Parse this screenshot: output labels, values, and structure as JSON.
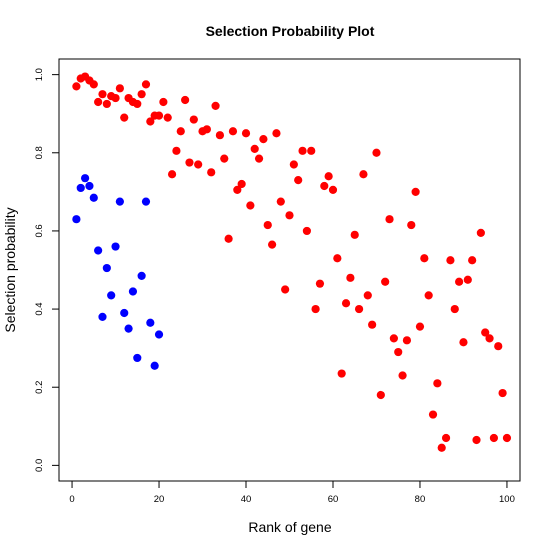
{
  "chart_data": {
    "type": "scatter",
    "title": "Selection Probability Plot",
    "xlabel": "Rank of gene",
    "ylabel": "Selection probability",
    "xlim": [
      -3,
      103
    ],
    "ylim": [
      -0.04,
      1.04
    ],
    "xticks": [
      0,
      20,
      40,
      60,
      80,
      100
    ],
    "yticks": [
      0.0,
      0.2,
      0.4,
      0.6,
      0.8,
      1.0
    ],
    "ytick_labels": [
      "0.0",
      "0.2",
      "0.4",
      "0.6",
      "0.8",
      "1.0"
    ],
    "grid": false,
    "colors": {
      "series_1": "#ff0000",
      "series_2": "#0000ff",
      "axis": "#000000"
    },
    "series": [
      {
        "color": "#ff0000",
        "points": [
          [
            1,
            0.97
          ],
          [
            2,
            0.99
          ],
          [
            3,
            0.995
          ],
          [
            4,
            0.985
          ],
          [
            5,
            0.975
          ],
          [
            6,
            0.93
          ],
          [
            7,
            0.95
          ],
          [
            8,
            0.925
          ],
          [
            9,
            0.945
          ],
          [
            10,
            0.94
          ],
          [
            11,
            0.965
          ],
          [
            12,
            0.89
          ],
          [
            13,
            0.94
          ],
          [
            14,
            0.93
          ],
          [
            15,
            0.925
          ],
          [
            16,
            0.95
          ],
          [
            17,
            0.975
          ],
          [
            18,
            0.88
          ],
          [
            19,
            0.895
          ],
          [
            20,
            0.895
          ],
          [
            21,
            0.93
          ],
          [
            22,
            0.89
          ],
          [
            23,
            0.745
          ],
          [
            24,
            0.805
          ],
          [
            25,
            0.855
          ],
          [
            26,
            0.935
          ],
          [
            27,
            0.775
          ],
          [
            28,
            0.885
          ],
          [
            29,
            0.77
          ],
          [
            30,
            0.855
          ],
          [
            31,
            0.86
          ],
          [
            32,
            0.75
          ],
          [
            33,
            0.92
          ],
          [
            34,
            0.845
          ],
          [
            35,
            0.785
          ],
          [
            36,
            0.58
          ],
          [
            37,
            0.855
          ],
          [
            38,
            0.705
          ],
          [
            39,
            0.72
          ],
          [
            40,
            0.85
          ],
          [
            41,
            0.665
          ],
          [
            42,
            0.81
          ],
          [
            43,
            0.785
          ],
          [
            44,
            0.835
          ],
          [
            45,
            0.615
          ],
          [
            46,
            0.565
          ],
          [
            47,
            0.85
          ],
          [
            48,
            0.675
          ],
          [
            49,
            0.45
          ],
          [
            50,
            0.64
          ],
          [
            51,
            0.77
          ],
          [
            52,
            0.73
          ],
          [
            53,
            0.805
          ],
          [
            54,
            0.6
          ],
          [
            55,
            0.805
          ],
          [
            56,
            0.4
          ],
          [
            57,
            0.465
          ],
          [
            58,
            0.715
          ],
          [
            59,
            0.74
          ],
          [
            60,
            0.705
          ],
          [
            61,
            0.53
          ],
          [
            62,
            0.235
          ],
          [
            63,
            0.415
          ],
          [
            64,
            0.48
          ],
          [
            65,
            0.59
          ],
          [
            66,
            0.4
          ],
          [
            67,
            0.745
          ],
          [
            68,
            0.435
          ],
          [
            69,
            0.36
          ],
          [
            70,
            0.8
          ],
          [
            71,
            0.18
          ],
          [
            72,
            0.47
          ],
          [
            73,
            0.63
          ],
          [
            74,
            0.325
          ],
          [
            75,
            0.29
          ],
          [
            76,
            0.23
          ],
          [
            77,
            0.32
          ],
          [
            78,
            0.615
          ],
          [
            79,
            0.7
          ],
          [
            80,
            0.355
          ],
          [
            81,
            0.53
          ],
          [
            82,
            0.435
          ],
          [
            83,
            0.13
          ],
          [
            84,
            0.21
          ],
          [
            85,
            0.045
          ],
          [
            86,
            0.07
          ],
          [
            87,
            0.525
          ],
          [
            88,
            0.4
          ],
          [
            89,
            0.47
          ],
          [
            90,
            0.315
          ],
          [
            91,
            0.475
          ],
          [
            92,
            0.525
          ],
          [
            93,
            0.065
          ],
          [
            94,
            0.595
          ],
          [
            95,
            0.34
          ],
          [
            96,
            0.325
          ],
          [
            97,
            0.07
          ],
          [
            98,
            0.305
          ],
          [
            99,
            0.185
          ],
          [
            100,
            0.07
          ]
        ]
      },
      {
        "color": "#0000ff",
        "points": [
          [
            1,
            0.63
          ],
          [
            2,
            0.71
          ],
          [
            3,
            0.735
          ],
          [
            4,
            0.715
          ],
          [
            5,
            0.685
          ],
          [
            6,
            0.55
          ],
          [
            7,
            0.38
          ],
          [
            8,
            0.505
          ],
          [
            9,
            0.435
          ],
          [
            10,
            0.56
          ],
          [
            11,
            0.675
          ],
          [
            12,
            0.39
          ],
          [
            13,
            0.35
          ],
          [
            14,
            0.445
          ],
          [
            15,
            0.275
          ],
          [
            16,
            0.485
          ],
          [
            17,
            0.675
          ],
          [
            18,
            0.365
          ],
          [
            19,
            0.255
          ],
          [
            20,
            0.335
          ]
        ]
      }
    ]
  }
}
